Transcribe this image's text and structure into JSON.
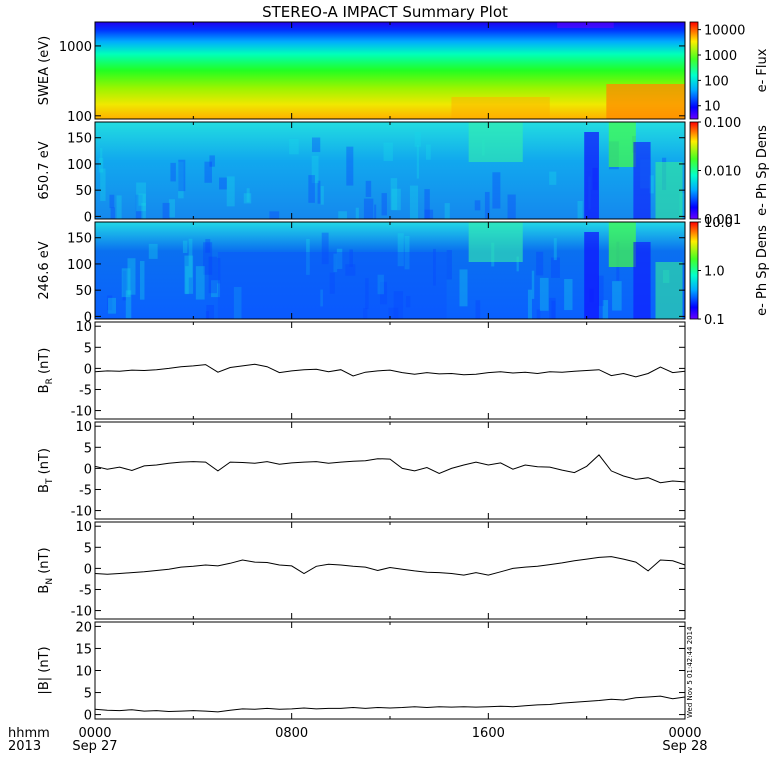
{
  "title": "STEREO-A IMPACT Summary Plot",
  "stamp": "Wed Nov  5 01:42:44 2014",
  "time_axis": {
    "row1_label": "hhmm",
    "row2_label": "2013",
    "ticks": [
      {
        "hhmm": "0000",
        "date": "Sep 27",
        "hour": 0
      },
      {
        "hhmm": "0800",
        "date": "",
        "hour": 8
      },
      {
        "hhmm": "1600",
        "date": "",
        "hour": 16
      },
      {
        "hhmm": "0000",
        "date": "Sep 28",
        "hour": 24
      }
    ]
  },
  "chart_data": [
    {
      "type": "heatmap",
      "ylabel": "SWEA (eV)",
      "yscale": "log",
      "ylim": [
        90,
        2200
      ],
      "yticks": [
        {
          "v": 1000,
          "label": "1000"
        },
        {
          "v": 100,
          "label": "100"
        }
      ],
      "colorbar": {
        "label": "e- Flux",
        "scale": "log",
        "range": [
          3,
          20000
        ],
        "ticks": [
          {
            "v": 10000,
            "label": "10000"
          },
          {
            "v": 1000,
            "label": "1000"
          },
          {
            "v": 100,
            "label": "100"
          },
          {
            "v": 10,
            "label": "10"
          }
        ]
      },
      "colors": {
        "low": "#0000ff",
        "high": "#ff0000"
      }
    },
    {
      "type": "heatmap",
      "ylabel": "650.7 eV",
      "ylim": [
        -5,
        180
      ],
      "yticks": [
        {
          "v": 150,
          "label": "150"
        },
        {
          "v": 100,
          "label": "100"
        },
        {
          "v": 50,
          "label": "50"
        },
        {
          "v": 0,
          "label": "0"
        }
      ],
      "colorbar": {
        "label": "e- Ph Sp Dens",
        "scale": "log",
        "range": [
          0.001,
          0.1
        ],
        "ticks": [
          {
            "v": 0.1,
            "label": "0.100"
          },
          {
            "v": 0.01,
            "label": "0.010"
          },
          {
            "v": 0.001,
            "label": "0.001"
          }
        ]
      }
    },
    {
      "type": "heatmap",
      "ylabel": "246.6 eV",
      "ylim": [
        -5,
        180
      ],
      "yticks": [
        {
          "v": 150,
          "label": "150"
        },
        {
          "v": 100,
          "label": "100"
        },
        {
          "v": 50,
          "label": "50"
        },
        {
          "v": 0,
          "label": "0"
        }
      ],
      "colorbar": {
        "label": "e- Ph Sp Dens",
        "scale": "log",
        "range": [
          0.1,
          10
        ],
        "ticks": [
          {
            "v": 10,
            "label": "10.0"
          },
          {
            "v": 1,
            "label": "1.0"
          },
          {
            "v": 0.1,
            "label": "0.1"
          }
        ]
      }
    },
    {
      "type": "line",
      "ylabel": "B",
      "ylabel_sub": "R",
      "ylabel_unit": " (nT)",
      "ylim": [
        -12,
        11
      ],
      "yticks": [
        {
          "v": 10,
          "label": "10"
        },
        {
          "v": 5,
          "label": "5"
        },
        {
          "v": 0,
          "label": "0"
        },
        {
          "v": -5,
          "label": "-5"
        },
        {
          "v": -10,
          "label": "-10"
        }
      ],
      "x": [
        0,
        0.5,
        1,
        1.5,
        2,
        2.5,
        3,
        3.5,
        4,
        4.5,
        5,
        5.5,
        6,
        6.5,
        7,
        7.5,
        8,
        8.5,
        9,
        9.5,
        10,
        10.5,
        11,
        11.5,
        12,
        12.5,
        13,
        13.5,
        14,
        14.5,
        15,
        15.5,
        16,
        16.5,
        17,
        17.5,
        18,
        18.5,
        19,
        19.5,
        20,
        20.5,
        21,
        21.5,
        22,
        22.5,
        23,
        23.5,
        24
      ],
      "y": [
        -0.8,
        -0.6,
        -0.7,
        -0.4,
        -0.5,
        -0.3,
        0.0,
        0.4,
        0.6,
        0.9,
        -0.9,
        0.2,
        0.6,
        1.0,
        0.4,
        -1.0,
        -0.6,
        -0.3,
        -0.2,
        -0.8,
        -0.3,
        -1.8,
        -0.9,
        -0.6,
        -0.4,
        -1.0,
        -1.4,
        -1.0,
        -1.3,
        -1.2,
        -1.5,
        -1.4,
        -1.0,
        -0.8,
        -1.1,
        -0.9,
        -1.2,
        -0.8,
        -0.9,
        -0.7,
        -0.5,
        -0.3,
        -1.7,
        -1.2,
        -2.0,
        -1.2,
        0.3,
        -1.0,
        -0.7
      ]
    },
    {
      "type": "line",
      "ylabel": "B",
      "ylabel_sub": "T",
      "ylabel_unit": " (nT)",
      "ylim": [
        -12,
        11
      ],
      "yticks": [
        {
          "v": 10,
          "label": "10"
        },
        {
          "v": 5,
          "label": "5"
        },
        {
          "v": 0,
          "label": "0"
        },
        {
          "v": -5,
          "label": "-5"
        },
        {
          "v": -10,
          "label": "-10"
        }
      ],
      "x": [
        0,
        0.5,
        1,
        1.5,
        2,
        2.5,
        3,
        3.5,
        4,
        4.5,
        5,
        5.5,
        6,
        6.5,
        7,
        7.5,
        8,
        8.5,
        9,
        9.5,
        10,
        10.5,
        11,
        11.5,
        12,
        12.5,
        13,
        13.5,
        14,
        14.5,
        15,
        15.5,
        16,
        16.5,
        17,
        17.5,
        18,
        18.5,
        19,
        19.5,
        20,
        20.5,
        21,
        21.5,
        22,
        22.5,
        23,
        23.5,
        24
      ],
      "y": [
        0.5,
        -0.2,
        0.3,
        -0.5,
        0.6,
        0.8,
        1.2,
        1.5,
        1.6,
        1.5,
        -0.6,
        1.5,
        1.4,
        1.2,
        1.6,
        1.0,
        1.3,
        1.5,
        1.6,
        1.2,
        1.5,
        1.7,
        1.8,
        2.3,
        2.2,
        0.0,
        -0.6,
        0.2,
        -1.2,
        0.0,
        0.8,
        1.5,
        0.8,
        1.3,
        -0.2,
        0.8,
        0.4,
        0.3,
        -0.4,
        -1.0,
        0.5,
        3.2,
        -0.6,
        -1.8,
        -2.6,
        -2.2,
        -3.4,
        -3.0,
        -3.2
      ]
    },
    {
      "type": "line",
      "ylabel": "B",
      "ylabel_sub": "N",
      "ylabel_unit": " (nT)",
      "ylim": [
        -12,
        11
      ],
      "yticks": [
        {
          "v": 10,
          "label": "10"
        },
        {
          "v": 5,
          "label": "5"
        },
        {
          "v": 0,
          "label": "0"
        },
        {
          "v": -5,
          "label": "-5"
        },
        {
          "v": -10,
          "label": "-10"
        }
      ],
      "x": [
        0,
        0.5,
        1,
        1.5,
        2,
        2.5,
        3,
        3.5,
        4,
        4.5,
        5,
        5.5,
        6,
        6.5,
        7,
        7.5,
        8,
        8.5,
        9,
        9.5,
        10,
        10.5,
        11,
        11.5,
        12,
        12.5,
        13,
        13.5,
        14,
        14.5,
        15,
        15.5,
        16,
        16.5,
        17,
        17.5,
        18,
        18.5,
        19,
        19.5,
        20,
        20.5,
        21,
        21.5,
        22,
        22.5,
        23,
        23.5,
        24
      ],
      "y": [
        -1.2,
        -1.4,
        -1.2,
        -1.0,
        -0.8,
        -0.5,
        -0.2,
        0.3,
        0.5,
        0.8,
        0.6,
        1.2,
        2.0,
        1.5,
        1.4,
        0.8,
        0.6,
        -1.2,
        0.5,
        1.0,
        0.8,
        0.5,
        0.3,
        -0.5,
        0.2,
        -0.2,
        -0.6,
        -0.9,
        -1.0,
        -1.2,
        -1.6,
        -1.0,
        -1.6,
        -0.8,
        0.0,
        0.3,
        0.5,
        0.9,
        1.3,
        1.8,
        2.2,
        2.6,
        2.8,
        2.2,
        1.5,
        -0.6,
        2.0,
        1.8,
        0.8
      ]
    },
    {
      "type": "line",
      "ylabel": "|B| (nT)",
      "ylim": [
        -1,
        21
      ],
      "yticks": [
        {
          "v": 20,
          "label": "20"
        },
        {
          "v": 15,
          "label": "15"
        },
        {
          "v": 10,
          "label": "10"
        },
        {
          "v": 5,
          "label": "5"
        },
        {
          "v": 0,
          "label": "0"
        }
      ],
      "x": [
        0,
        0.5,
        1,
        1.5,
        2,
        2.5,
        3,
        3.5,
        4,
        4.5,
        5,
        5.5,
        6,
        6.5,
        7,
        7.5,
        8,
        8.5,
        9,
        9.5,
        10,
        10.5,
        11,
        11.5,
        12,
        12.5,
        13,
        13.5,
        14,
        14.5,
        15,
        15.5,
        16,
        16.5,
        17,
        17.5,
        18,
        18.5,
        19,
        19.5,
        20,
        20.5,
        21,
        21.5,
        22,
        22.5,
        23,
        23.5,
        24
      ],
      "y": [
        1.2,
        1.0,
        0.9,
        1.1,
        0.8,
        0.9,
        0.7,
        0.8,
        0.9,
        0.8,
        0.6,
        1.0,
        1.3,
        1.2,
        1.4,
        1.2,
        1.3,
        1.5,
        1.3,
        1.4,
        1.4,
        1.6,
        1.4,
        1.6,
        1.5,
        1.6,
        1.8,
        1.6,
        1.8,
        1.7,
        1.8,
        1.7,
        1.8,
        1.9,
        1.8,
        2.0,
        2.2,
        2.3,
        2.6,
        2.8,
        3.0,
        3.2,
        3.5,
        3.3,
        3.8,
        4.0,
        4.2,
        3.6,
        4.0
      ]
    }
  ]
}
